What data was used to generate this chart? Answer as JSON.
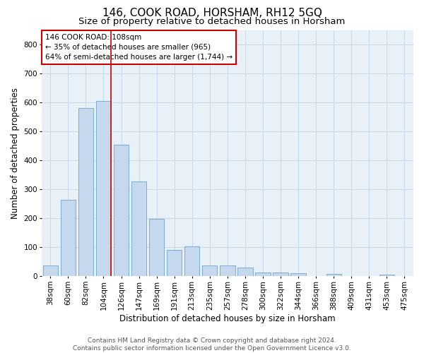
{
  "title": "146, COOK ROAD, HORSHAM, RH12 5GQ",
  "subtitle": "Size of property relative to detached houses in Horsham",
  "xlabel": "Distribution of detached houses by size in Horsham",
  "ylabel": "Number of detached properties",
  "categories": [
    "38sqm",
    "60sqm",
    "82sqm",
    "104sqm",
    "126sqm",
    "147sqm",
    "169sqm",
    "191sqm",
    "213sqm",
    "235sqm",
    "257sqm",
    "278sqm",
    "300sqm",
    "322sqm",
    "344sqm",
    "366sqm",
    "388sqm",
    "409sqm",
    "431sqm",
    "453sqm",
    "475sqm"
  ],
  "values": [
    37,
    265,
    580,
    605,
    453,
    328,
    197,
    90,
    103,
    38,
    37,
    30,
    14,
    14,
    10,
    0,
    8,
    0,
    0,
    6,
    0
  ],
  "bar_color": "#c5d8ee",
  "bar_edge_color": "#7aadd4",
  "highlight_index": 3,
  "highlight_line_color": "#cc0000",
  "annotation_text": "146 COOK ROAD: 108sqm\n← 35% of detached houses are smaller (965)\n64% of semi-detached houses are larger (1,744) →",
  "annotation_box_color": "#ffffff",
  "annotation_box_edge_color": "#cc0000",
  "ylim": [
    0,
    850
  ],
  "yticks": [
    0,
    100,
    200,
    300,
    400,
    500,
    600,
    700,
    800
  ],
  "grid_color": "#c8d8e8",
  "background_color": "#e8f0f8",
  "footer_text": "Contains HM Land Registry data © Crown copyright and database right 2024.\nContains public sector information licensed under the Open Government Licence v3.0.",
  "title_fontsize": 11,
  "subtitle_fontsize": 9.5,
  "axis_label_fontsize": 8.5,
  "tick_fontsize": 7.5,
  "footer_fontsize": 6.5
}
